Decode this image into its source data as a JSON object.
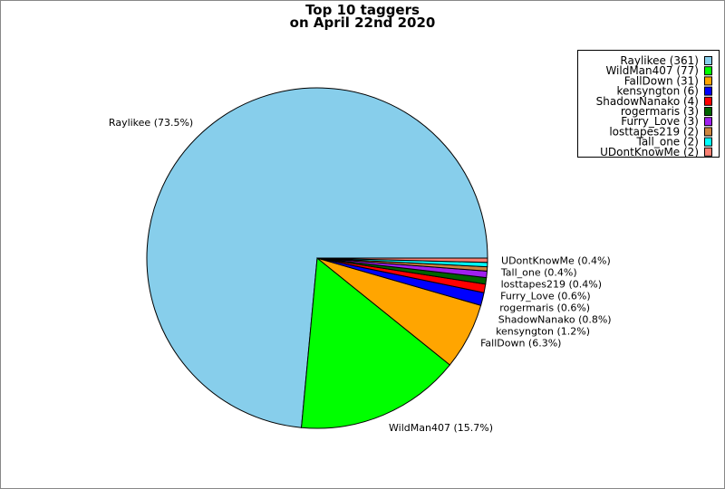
{
  "chart_data": {
    "type": "pie",
    "title": [
      "Top 10 taggers",
      "on April 22nd 2020"
    ],
    "slices": [
      {
        "name": "Raylikee",
        "value": 361,
        "label": "Raylikee (73.5%)",
        "legend": "Raylikee (361)",
        "color": "#87ceeb"
      },
      {
        "name": "WildMan407",
        "value": 77,
        "label": "WildMan407 (15.7%)",
        "legend": "WildMan407 (77)",
        "color": "#00ff00"
      },
      {
        "name": "FallDown",
        "value": 31,
        "label": "FallDown (6.3%)",
        "legend": "FallDown (31)",
        "color": "#ffa500"
      },
      {
        "name": "kensyngton",
        "value": 6,
        "label": "kensyngton (1.2%)",
        "legend": "kensyngton (6)",
        "color": "#0000ff"
      },
      {
        "name": "ShadowNanako",
        "value": 4,
        "label": "ShadowNanako (0.8%)",
        "legend": "ShadowNanako (4)",
        "color": "#ff0000"
      },
      {
        "name": "rogermaris",
        "value": 3,
        "label": "rogermaris (0.6%)",
        "legend": "rogermaris (3)",
        "color": "#006400"
      },
      {
        "name": "Furry_Love",
        "value": 3,
        "label": "Furry_Love (0.6%)",
        "legend": "Furry_Love (3)",
        "color": "#a020f0"
      },
      {
        "name": "losttapes219",
        "value": 2,
        "label": "losttapes219 (0.4%)",
        "legend": "losttapes219 (2)",
        "color": "#cd853f"
      },
      {
        "name": "Tall_one",
        "value": 2,
        "label": "Tall_one (0.4%)",
        "legend": "Tall_one (2)",
        "color": "#00ffff"
      },
      {
        "name": "UDontKnowMe",
        "value": 2,
        "label": "UDontKnowMe (0.4%)",
        "legend": "UDontKnowMe (2)",
        "color": "#fa8072"
      }
    ],
    "legend_position": "top-right",
    "start_angle": "east, counter-clockwise"
  }
}
